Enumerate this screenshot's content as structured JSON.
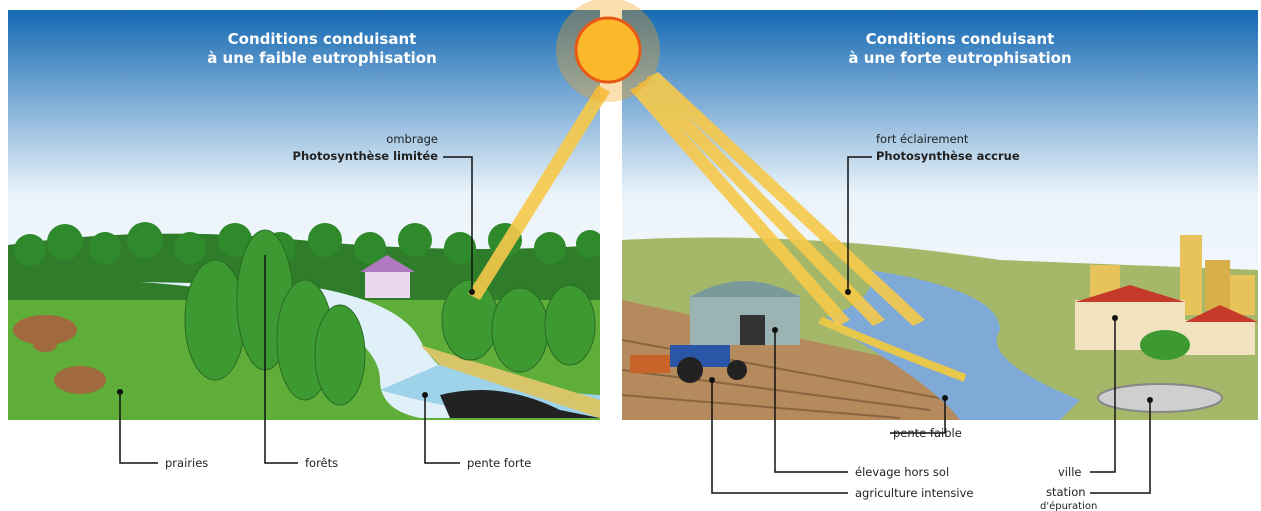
{
  "left": {
    "title_line1": "Conditions conduisant",
    "title_prefix": "à une",
    "title_emphasis": "faible eutrophisation",
    "callout_note": "ombrage",
    "callout_effect": "Photosynthèse limitée",
    "labels": [
      "prairies",
      "forêts",
      "pente forte"
    ]
  },
  "right": {
    "title_line1": "Conditions conduisant",
    "title_prefix": "à une",
    "title_emphasis": "forte eutrophisation",
    "callout_note": "fort éclairement",
    "callout_effect": "Photosynthèse accrue",
    "labels": [
      "pente faible",
      "élevage hors sol",
      "agriculture intensive",
      "ville",
      "station",
      "d'épuration"
    ]
  }
}
